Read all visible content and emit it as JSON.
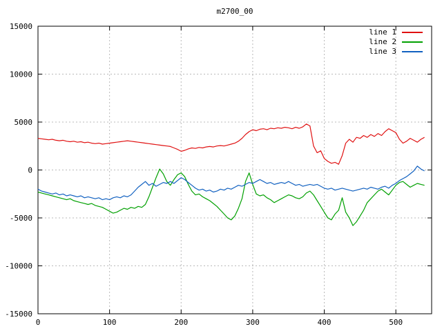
{
  "chart_data": {
    "type": "line",
    "title": "m2700_00",
    "xlabel": "",
    "ylabel": "",
    "xlim": [
      0,
      550
    ],
    "ylim": [
      -15000,
      15000
    ],
    "xticks": [
      0,
      100,
      200,
      300,
      400,
      500
    ],
    "yticks": [
      -15000,
      -10000,
      -5000,
      0,
      5000,
      10000,
      15000
    ],
    "grid": true,
    "legend_position": "top-right",
    "x_start": 0,
    "x_step": 5,
    "series": [
      {
        "name": "line 1",
        "color": "#e01010",
        "values": [
          3300,
          3250,
          3200,
          3150,
          3200,
          3100,
          3050,
          3100,
          3000,
          2950,
          3000,
          2900,
          2950,
          2850,
          2900,
          2800,
          2750,
          2800,
          2700,
          2750,
          2800,
          2850,
          2900,
          2950,
          3000,
          3050,
          3000,
          2950,
          2900,
          2850,
          2800,
          2750,
          2700,
          2650,
          2600,
          2550,
          2500,
          2450,
          2300,
          2150,
          1950,
          2050,
          2200,
          2300,
          2250,
          2350,
          2300,
          2400,
          2450,
          2400,
          2500,
          2550,
          2500,
          2600,
          2700,
          2800,
          3000,
          3300,
          3700,
          4000,
          4200,
          4100,
          4250,
          4300,
          4200,
          4350,
          4300,
          4400,
          4350,
          4450,
          4400,
          4300,
          4450,
          4350,
          4500,
          4800,
          4600,
          2500,
          1800,
          2000,
          1200,
          900,
          700,
          800,
          600,
          1500,
          2800,
          3200,
          2900,
          3400,
          3300,
          3600,
          3400,
          3700,
          3500,
          3800,
          3600,
          4000,
          4300,
          4100,
          3900,
          3200,
          2800,
          3000,
          3300,
          3100,
          2900,
          3200,
          3400
        ]
      },
      {
        "name": "line 2",
        "color": "#00a000",
        "values": [
          -2300,
          -2400,
          -2500,
          -2600,
          -2700,
          -2800,
          -2900,
          -3000,
          -3100,
          -3000,
          -3200,
          -3300,
          -3400,
          -3500,
          -3600,
          -3500,
          -3700,
          -3800,
          -3900,
          -4100,
          -4300,
          -4500,
          -4400,
          -4200,
          -4000,
          -4100,
          -3900,
          -4000,
          -3800,
          -3900,
          -3600,
          -2800,
          -1800,
          -800,
          100,
          -400,
          -1200,
          -1600,
          -1000,
          -500,
          -300,
          -700,
          -1500,
          -2200,
          -2600,
          -2500,
          -2800,
          -3000,
          -3200,
          -3500,
          -3800,
          -4200,
          -4600,
          -5000,
          -5200,
          -4800,
          -4000,
          -3000,
          -1200,
          -300,
          -1500,
          -2500,
          -2700,
          -2600,
          -2900,
          -3100,
          -3400,
          -3200,
          -3000,
          -2800,
          -2600,
          -2700,
          -2900,
          -3000,
          -2800,
          -2400,
          -2200,
          -2600,
          -3200,
          -3800,
          -4400,
          -5000,
          -5200,
          -4600,
          -4200,
          -2900,
          -4400,
          -5000,
          -5800,
          -5400,
          -4800,
          -4200,
          -3400,
          -3000,
          -2600,
          -2200,
          -2000,
          -2300,
          -2600,
          -2100,
          -1600,
          -1300,
          -1200,
          -1500,
          -1800,
          -1600,
          -1400,
          -1500,
          -1600
        ]
      },
      {
        "name": "line 3",
        "color": "#1060c0",
        "values": [
          -2000,
          -2200,
          -2300,
          -2400,
          -2500,
          -2400,
          -2600,
          -2500,
          -2700,
          -2600,
          -2700,
          -2800,
          -2700,
          -2900,
          -2800,
          -2900,
          -3000,
          -2900,
          -3100,
          -3000,
          -3100,
          -2900,
          -2800,
          -2900,
          -2700,
          -2800,
          -2600,
          -2200,
          -1800,
          -1500,
          -1200,
          -1600,
          -1400,
          -1700,
          -1500,
          -1300,
          -1400,
          -1200,
          -1400,
          -1100,
          -800,
          -1000,
          -1300,
          -1600,
          -1900,
          -2100,
          -2000,
          -2200,
          -2100,
          -2300,
          -2200,
          -2000,
          -2100,
          -1900,
          -2000,
          -1800,
          -1600,
          -1700,
          -1500,
          -1300,
          -1400,
          -1200,
          -1000,
          -1200,
          -1400,
          -1300,
          -1500,
          -1400,
          -1300,
          -1400,
          -1200,
          -1400,
          -1600,
          -1500,
          -1700,
          -1600,
          -1500,
          -1600,
          -1500,
          -1700,
          -1900,
          -2000,
          -1900,
          -2100,
          -2000,
          -1900,
          -2000,
          -2100,
          -2200,
          -2100,
          -2000,
          -1900,
          -2000,
          -1800,
          -1900,
          -2000,
          -1800,
          -1700,
          -1900,
          -1600,
          -1400,
          -1100,
          -900,
          -700,
          -400,
          -100,
          400,
          100,
          -100
        ]
      }
    ]
  }
}
